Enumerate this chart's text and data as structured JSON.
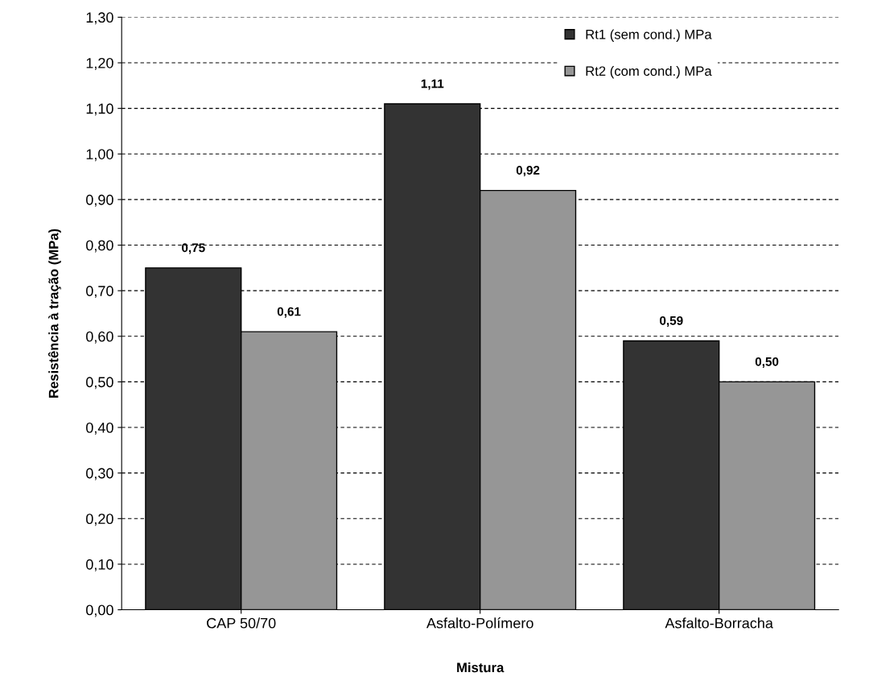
{
  "chart_data": {
    "type": "bar",
    "xlabel": "Mistura",
    "ylabel": "Resistência à tração (MPa)",
    "categories": [
      "CAP 50/70",
      "Asfalto-Polímero",
      "Asfalto-Borracha"
    ],
    "series": [
      {
        "name": "Rt1 (sem cond.) MPa",
        "color": "#333333",
        "values": [
          0.75,
          1.11,
          0.59
        ],
        "value_labels": [
          "0,75",
          "1,11",
          "0,59"
        ]
      },
      {
        "name": "Rt2 (com cond.) MPa",
        "color": "#969696",
        "values": [
          0.61,
          0.92,
          0.5
        ],
        "value_labels": [
          "0,61",
          "0,92",
          "0,50"
        ]
      }
    ],
    "ylim": [
      0,
      1.3
    ],
    "yticks": [
      {
        "value": 0,
        "label": "0,00"
      },
      {
        "value": 0.1,
        "label": "0,10"
      },
      {
        "value": 0.2,
        "label": "0,20"
      },
      {
        "value": 0.3,
        "label": "0,30"
      },
      {
        "value": 0.4,
        "label": "0,40"
      },
      {
        "value": 0.5,
        "label": "0,50"
      },
      {
        "value": 0.6,
        "label": "0,60"
      },
      {
        "value": 0.7,
        "label": "0,70"
      },
      {
        "value": 0.8,
        "label": "0,80"
      },
      {
        "value": 0.9,
        "label": "0,90"
      },
      {
        "value": 1.0,
        "label": "1,00"
      },
      {
        "value": 1.1,
        "label": "1,10"
      },
      {
        "value": 1.2,
        "label": "1,20"
      },
      {
        "value": 1.3,
        "label": "1,30"
      }
    ],
    "grid": "y",
    "legend": "top right"
  }
}
